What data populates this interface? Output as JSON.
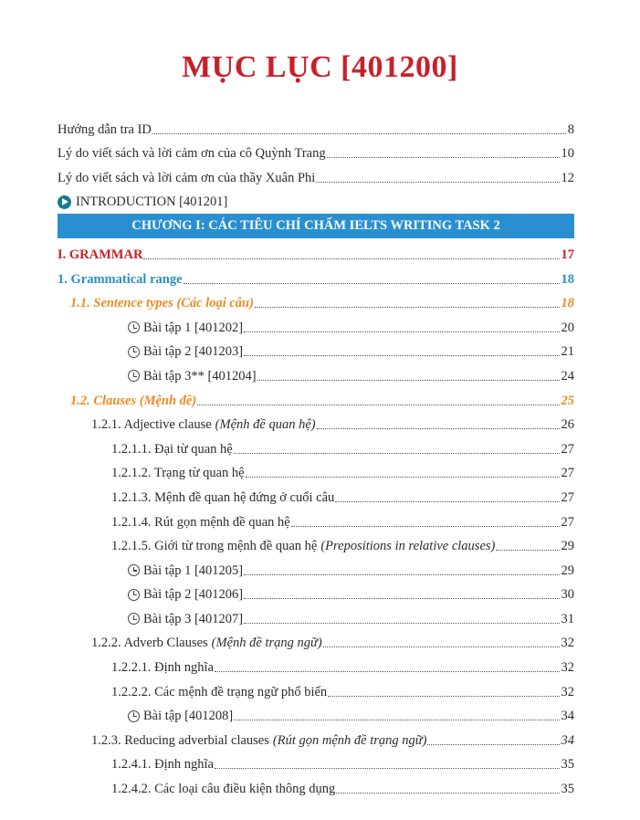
{
  "title": "MỤC LỤC [401200]",
  "colors": {
    "title": "#c8202a",
    "banner": "#2a8fd0",
    "section_blue": "#2a8fc6",
    "subsection_orange": "#ef8a22",
    "intro_icon": "#137d8e"
  },
  "entries": [
    {
      "text": "Hướng dẫn tra ID",
      "page": "8",
      "level": 0
    },
    {
      "text": "Lý do viết sách và lời cảm ơn của cô Quỳnh Trang",
      "page": "10",
      "level": 0
    },
    {
      "text": "Lý do viết sách và lời cảm ơn của thầy Xuân Phi",
      "page": "12",
      "level": 0
    },
    {
      "text": "INTRODUCTION [401201]",
      "level": 0,
      "icon": "play-circle-icon",
      "type": "intro"
    },
    {
      "text": "CHƯƠNG I: CÁC TIÊU CHÍ CHẤM IELTS WRITING TASK 2",
      "type": "banner"
    },
    {
      "text": "I. GRAMMAR",
      "page": "17",
      "level": 0,
      "style": "red"
    },
    {
      "text": "1. Grammatical range",
      "page": "18",
      "level": 0,
      "style": "blue"
    },
    {
      "text": "1.1. Sentence types (Các loại câu)",
      "page": "18",
      "level": 1,
      "style": "orange"
    },
    {
      "text": "Bài tập 1 [401202]",
      "page": "20",
      "level": 4,
      "icon": "clock-icon"
    },
    {
      "text": "Bài tập 2 [401203]",
      "page": "21",
      "level": 4,
      "icon": "clock-icon"
    },
    {
      "text": "Bài tập 3** [401204]",
      "page": "24",
      "level": 4,
      "icon": "clock-icon"
    },
    {
      "text": "1.2. Clauses (Mệnh đề)",
      "page": "25",
      "level": 1,
      "style": "orange"
    },
    {
      "text": "1.2.1. Adjective clause",
      "italic": "(Mệnh đề quan hệ)",
      "page": "26",
      "level": 2
    },
    {
      "text": "1.2.1.1. Đại từ quan hệ",
      "page": "27",
      "level": 3
    },
    {
      "text": "1.2.1.2. Trạng từ quan hệ",
      "page": "27",
      "level": 3
    },
    {
      "text": "1.2.1.3. Mệnh đề quan hệ đứng ở cuối câu",
      "page": "27",
      "level": 3
    },
    {
      "text": "1.2.1.4. Rút gọn mệnh đề quan hệ",
      "page": "27",
      "level": 3
    },
    {
      "text": "1.2.1.5. Giới từ trong mệnh đề quan hệ",
      "italic": "(Prepositions in relative clauses)",
      "page": "29",
      "level": 3
    },
    {
      "text": "Bài tập 1 [401205]",
      "page": "29",
      "level": 4,
      "icon": "clock-icon"
    },
    {
      "text": "Bài tập 2 [401206]",
      "page": "30",
      "level": 4,
      "icon": "clock-icon"
    },
    {
      "text": "Bài tập 3 [401207]",
      "page": "31",
      "level": 4,
      "icon": "clock-icon"
    },
    {
      "text": "1.2.2. Adverb Clauses",
      "italic": "(Mệnh đề trạng ngữ)",
      "page": "32",
      "level": 2
    },
    {
      "text": "1.2.2.1. Định nghĩa",
      "page": "32",
      "level": 3
    },
    {
      "text": "1.2.2.2. Các mệnh đề trạng ngữ phổ biến",
      "page": "32",
      "level": 3
    },
    {
      "text": "Bài tập [401208]",
      "page": "34",
      "level": 4,
      "icon": "clock-icon"
    },
    {
      "text": "1.2.3. Reducing adverbial clauses",
      "italic": "(Rút gọn mệnh đề trạng ngữ)",
      "page": "34",
      "page_italic": true,
      "level": 2
    },
    {
      "text": "1.2.4.1. Định nghĩa",
      "page": "35",
      "level": 3
    },
    {
      "text": "1.2.4.2. Các loại câu điều kiện thông dụng",
      "page": "35",
      "level": 3
    }
  ]
}
